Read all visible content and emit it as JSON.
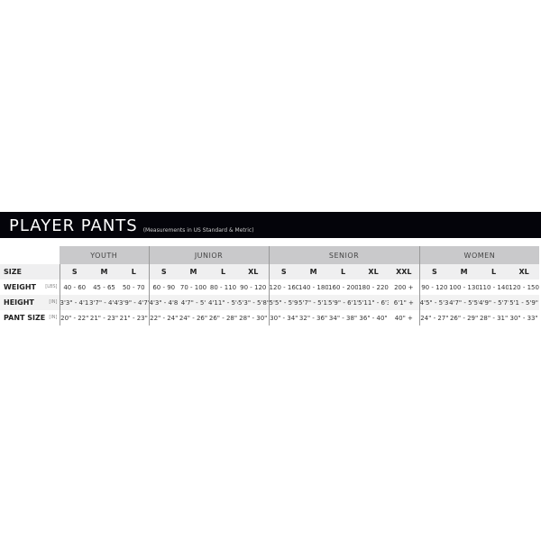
{
  "title": "PLAYER PANTS",
  "subtitle": "(Measurements in US Standard & Metric)",
  "groups": [
    {
      "name": "YOUTH",
      "sizes": [
        "S",
        "M",
        "L"
      ]
    },
    {
      "name": "JUNIOR",
      "sizes": [
        "S",
        "M",
        "L",
        "XL"
      ]
    },
    {
      "name": "SENIOR",
      "sizes": [
        "S",
        "M",
        "L",
        "XL",
        "XXL"
      ]
    },
    {
      "name": "WOMEN",
      "sizes": [
        "S",
        "M",
        "L",
        "XL"
      ]
    }
  ],
  "rows": [
    {
      "label": "SIZE",
      "unit": "",
      "values": [
        "S",
        "M",
        "L",
        "S",
        "M",
        "L",
        "XL",
        "S",
        "M",
        "L",
        "XL",
        "XXL",
        "S",
        "M",
        "L",
        "XL"
      ]
    },
    {
      "label": "WEIGHT",
      "unit": "[LBS]",
      "values": [
        "40 - 60",
        "45 - 65",
        "50 - 70",
        "60 - 90",
        "70 - 100",
        "80 - 110",
        "90 - 120",
        "120 - 160",
        "140 - 180",
        "160 - 200",
        "180 - 220",
        "200 +",
        "90 - 120",
        "100 - 130",
        "110 - 140",
        "120 - 150"
      ]
    },
    {
      "label": "HEIGHT",
      "unit": "[IN]",
      "values": [
        "3'3\" - 4'1\"",
        "3'7\" - 4'4\"",
        "3'9\" - 4'7\"",
        "4'3\" - 4'8\"",
        "4'7\" - 5'",
        "4'11\" - 5'4\"",
        "5'3\" - 5'8\"",
        "5'5\" - 5'9\"",
        "5'7\" - 5'11\"",
        "5'9\" - 6'1\"",
        "5'11\" - 6'3\"",
        "6'1\" +",
        "4'5\" - 5'3\"",
        "4'7\" - 5'5\"",
        "4'9\" - 5'7\"",
        "5'1 - 5'9\""
      ]
    },
    {
      "label": "PANT SIZE",
      "unit": "[IN]",
      "values": [
        "20\" - 22\"",
        "21\" - 23\"",
        "21\" - 23\"",
        "22\" - 24\"",
        "24\" - 26\"",
        "26\" - 28\"",
        "28\" - 30\"",
        "30\" - 34\"",
        "32\" - 36\"",
        "34\" - 38\"",
        "36\" - 40\"",
        "40\" +",
        "24\" - 27\"",
        "26\" - 29\"",
        "28\" - 31\"",
        "30\" - 33\""
      ]
    }
  ]
}
